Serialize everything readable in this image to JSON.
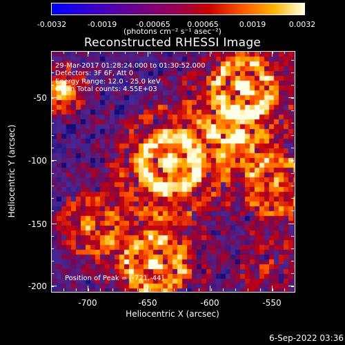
{
  "colorbar": {
    "ticks": [
      "-0.0032",
      "-0.0019",
      "-0.00065",
      "0.00065",
      "0.0019",
      "0.0032"
    ],
    "units": "(photons cm⁻² s⁻¹ asec⁻²)"
  },
  "title": "Reconstructed RHESSI Image",
  "info": {
    "time": "29-Mar-2017 01:28:24.000 to 01:30:52.000",
    "detectors": "Detectors: 3F 6F, Att 0",
    "energy": "Energy Range: 12.0 - 25.0 keV",
    "clean": "Clean      Total counts: 4.55E+03",
    "peak": "Position of Peak = [-721,-44]"
  },
  "axes": {
    "xlabel": "Heliocentric X (arcsec)",
    "ylabel": "Heliocentric Y (arcsec)",
    "xticks": [
      "-700",
      "-650",
      "-600",
      "-550"
    ],
    "yticks": [
      "-50",
      "-100",
      "-150",
      "-200"
    ]
  },
  "timestamp": "6-Sep-2022 03:36",
  "colors": {
    "background": "#000000",
    "text": "#ffffff"
  }
}
